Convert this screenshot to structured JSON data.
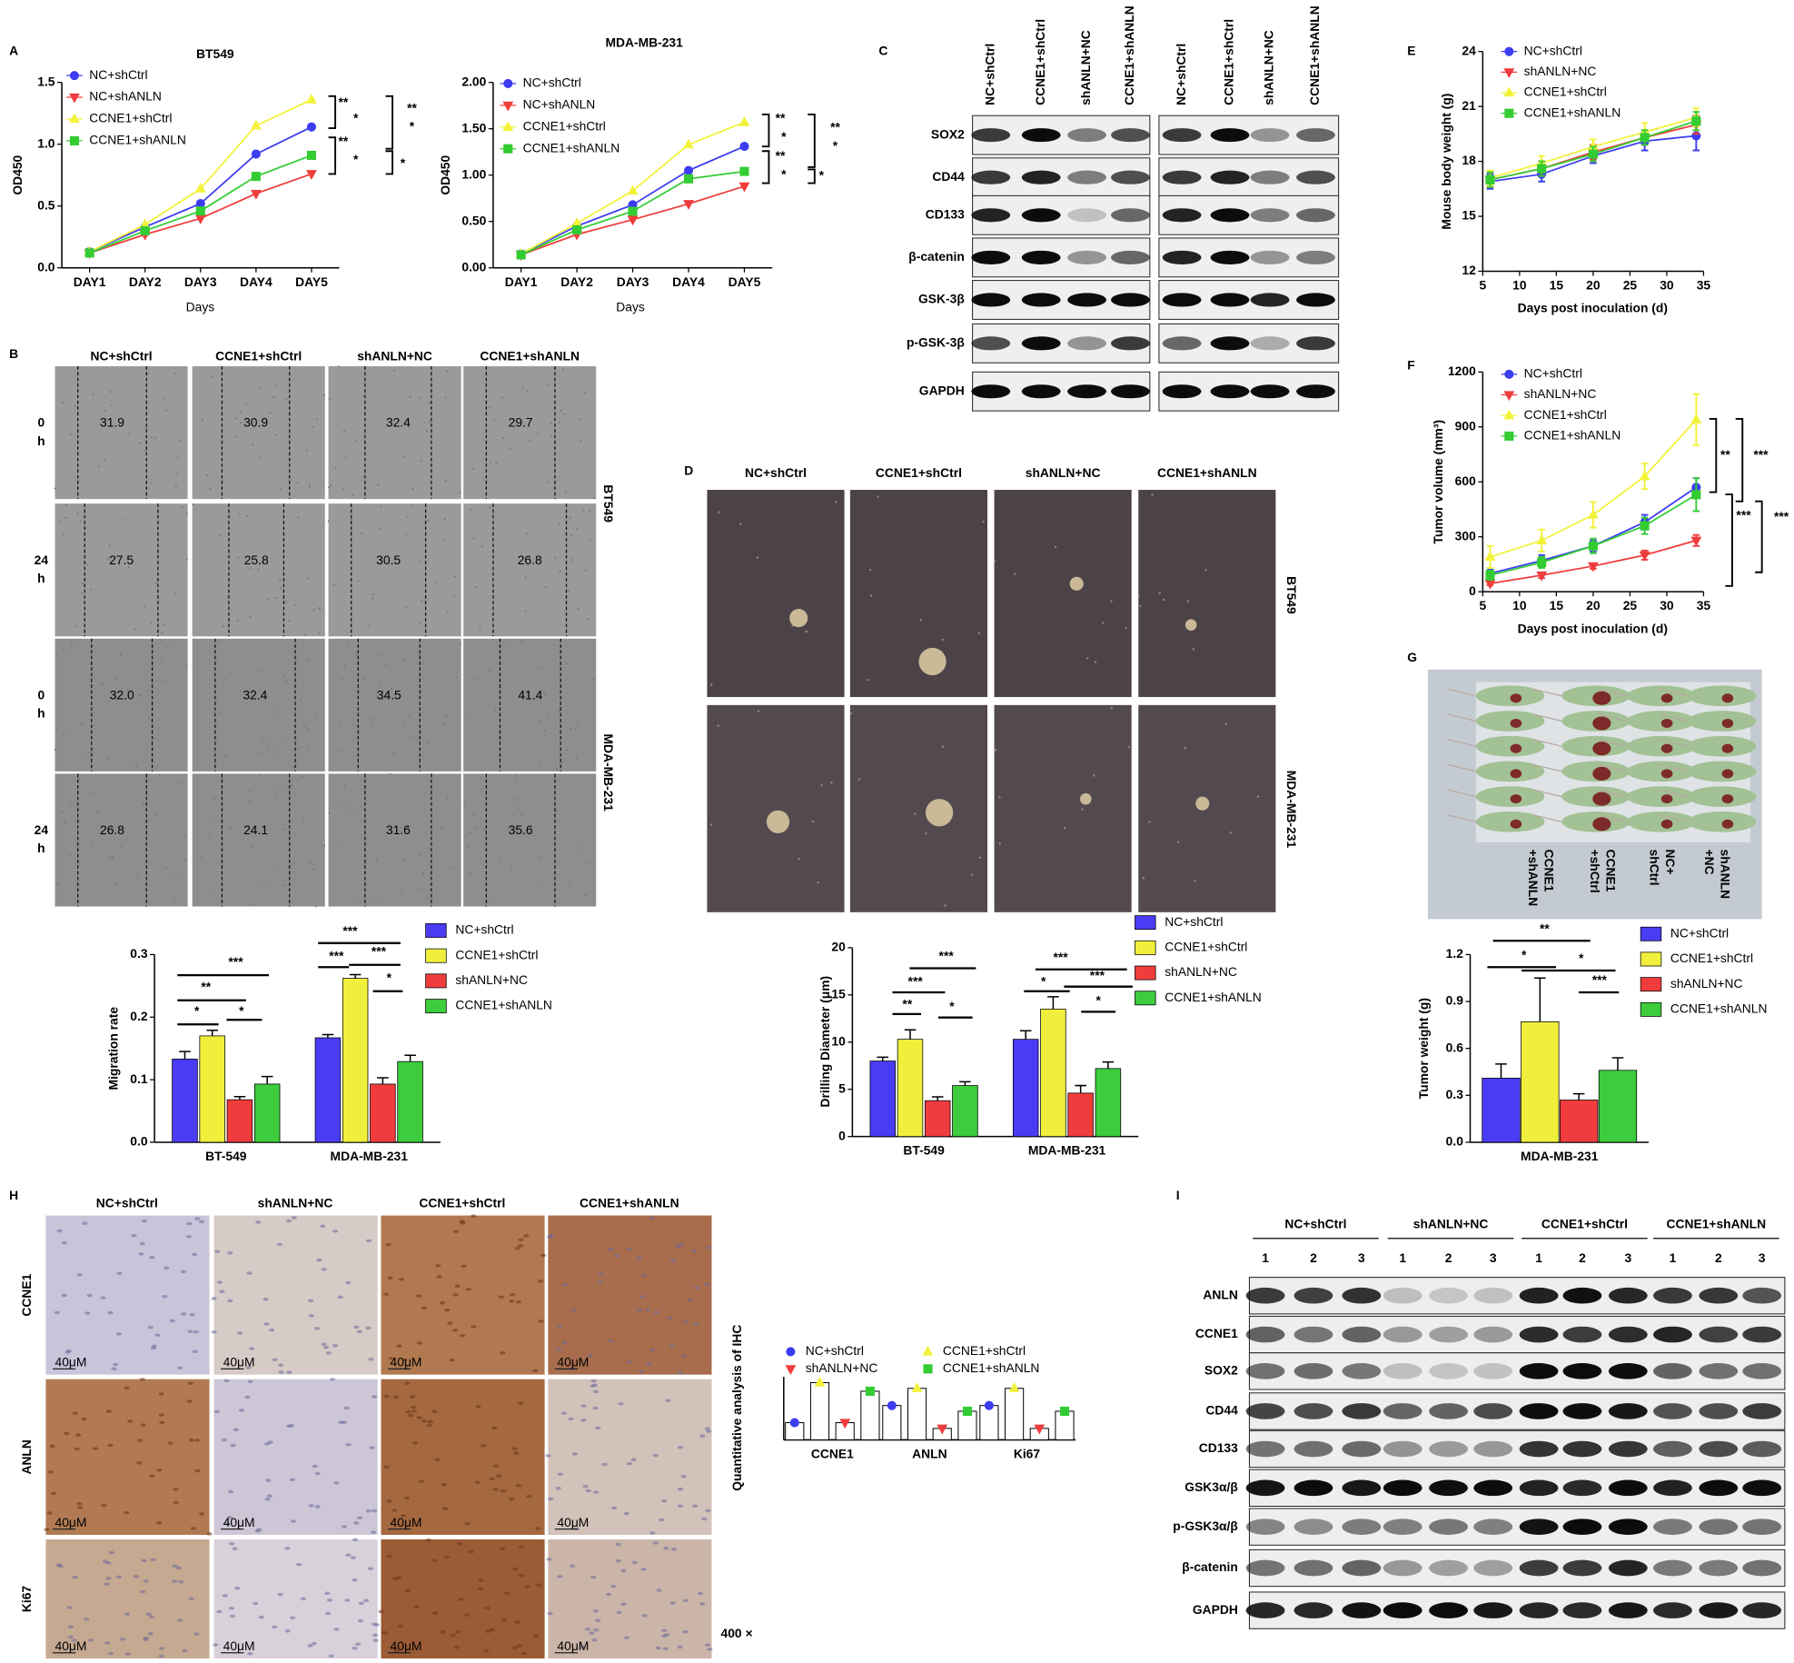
{
  "panel_letters": [
    "A",
    "B",
    "C",
    "D",
    "E",
    "F",
    "G",
    "H",
    "I"
  ],
  "chart_data": [
    {
      "type": "line",
      "title": "BT549",
      "x_label": "Days",
      "y_label": "OD450",
      "categories": [
        "DAY1",
        "DAY2",
        "DAY3",
        "DAY4",
        "DAY5"
      ],
      "series": [
        {
          "name": "NC+shCtrl",
          "color": "#3c3cf0",
          "marker": "circle",
          "values": [
            0.13,
            0.33,
            0.52,
            0.92,
            1.14
          ]
        },
        {
          "name": "NC+shANLN",
          "color": "#f03c3c",
          "marker": "triangle-down",
          "values": [
            0.12,
            0.27,
            0.4,
            0.6,
            0.76
          ]
        },
        {
          "name": "CCNE1+shCtrl",
          "color": "#f2f23a",
          "marker": "triangle-up",
          "values": [
            0.13,
            0.35,
            0.64,
            1.15,
            1.36
          ]
        },
        {
          "name": "CCNE1+shANLN",
          "color": "#33cc33",
          "marker": "square",
          "values": [
            0.12,
            0.3,
            0.46,
            0.74,
            0.91
          ]
        }
      ],
      "ylim": [
        0,
        1.5
      ],
      "yticks": [
        {
          "value": 0,
          "label": "0.0"
        },
        0.5,
        {
          "value": 1,
          "label": "1.0"
        },
        1.5
      ],
      "annotations": [
        "**",
        "*",
        "**",
        "*",
        "**",
        "*",
        "*"
      ]
    },
    {
      "type": "line",
      "title": "MDA-MB-231",
      "x_label": "Days",
      "y_label": "OD450",
      "categories": [
        "DAY1",
        "DAY2",
        "DAY3",
        "DAY4",
        "DAY5"
      ],
      "series": [
        {
          "name": "NC+shCtrl",
          "color": "#3c3cf0",
          "marker": "circle",
          "values": [
            0.15,
            0.45,
            0.68,
            1.05,
            1.31
          ]
        },
        {
          "name": "NC+shANLN",
          "color": "#f03c3c",
          "marker": "triangle-down",
          "values": [
            0.14,
            0.36,
            0.52,
            0.69,
            0.88
          ]
        },
        {
          "name": "CCNE1+shCtrl",
          "color": "#f2f23a",
          "marker": "triangle-up",
          "values": [
            0.15,
            0.48,
            0.83,
            1.33,
            1.57
          ]
        },
        {
          "name": "CCNE1+shANLN",
          "color": "#33cc33",
          "marker": "square",
          "values": [
            0.14,
            0.41,
            0.61,
            0.96,
            1.04
          ]
        }
      ],
      "ylim": [
        0,
        2
      ],
      "yticks": [
        {
          "value": 0,
          "label": "0.00"
        },
        {
          "value": 0.5,
          "label": "0.50"
        },
        {
          "value": 1,
          "label": "1.00"
        },
        {
          "value": 1.5,
          "label": "1.50"
        },
        {
          "value": 2,
          "label": "2.00"
        }
      ],
      "annotations": [
        "**",
        "*",
        "**",
        "*",
        "**",
        "*",
        "*"
      ]
    },
    {
      "type": "line",
      "x_label": "Days post inoculation (d)",
      "y_label": "Mouse body weight (g)",
      "x": [
        6,
        13,
        20,
        27,
        34
      ],
      "xlim": [
        5,
        35
      ],
      "xticks": [
        5,
        10,
        15,
        20,
        25,
        30,
        35
      ],
      "series": [
        {
          "name": "NC+shCtrl",
          "color": "#3c3cf0",
          "marker": "circle",
          "values": [
            16.9,
            17.3,
            18.3,
            19.1,
            19.4
          ],
          "errors": [
            0.4,
            0.4,
            0.4,
            0.5,
            0.8
          ]
        },
        {
          "name": "shANLN+NC",
          "color": "#f03c3c",
          "marker": "triangle-down",
          "values": [
            17.0,
            17.6,
            18.5,
            19.3,
            20.0
          ],
          "errors": [
            0.4,
            0.4,
            0.4,
            0.4,
            0.5
          ]
        },
        {
          "name": "CCNE1+shCtrl",
          "color": "#f2f23a",
          "marker": "triangle-up",
          "values": [
            17.1,
            17.9,
            18.8,
            19.6,
            20.4
          ],
          "errors": [
            0.4,
            0.4,
            0.4,
            0.5,
            0.5
          ]
        },
        {
          "name": "CCNE1+shANLN",
          "color": "#33cc33",
          "marker": "square",
          "values": [
            17.0,
            17.6,
            18.4,
            19.3,
            20.2
          ],
          "errors": [
            0.4,
            0.4,
            0.4,
            0.4,
            0.5
          ]
        }
      ],
      "ylim": [
        12,
        24
      ],
      "yticks": [
        12,
        15,
        18,
        21,
        24
      ]
    },
    {
      "type": "line",
      "x_label": "Days post inoculation (d)",
      "y_label": "Tumor volume (mm³)",
      "x": [
        6,
        13,
        20,
        27,
        34
      ],
      "xlim": [
        5,
        35
      ],
      "xticks": [
        5,
        10,
        15,
        20,
        25,
        30,
        35
      ],
      "series": [
        {
          "name": "NC+shCtrl",
          "color": "#3c3cf0",
          "marker": "circle",
          "values": [
            100,
            170,
            250,
            380,
            570
          ],
          "errors": [
            20,
            30,
            30,
            40,
            50
          ]
        },
        {
          "name": "shANLN+NC",
          "color": "#f03c3c",
          "marker": "triangle-down",
          "values": [
            45,
            90,
            140,
            200,
            280
          ],
          "errors": [
            10,
            15,
            15,
            25,
            30
          ]
        },
        {
          "name": "CCNE1+shCtrl",
          "color": "#f2f23a",
          "marker": "triangle-up",
          "values": [
            190,
            280,
            420,
            630,
            940
          ],
          "errors": [
            60,
            60,
            70,
            70,
            140
          ]
        },
        {
          "name": "CCNE1+shANLN",
          "color": "#33cc33",
          "marker": "square",
          "values": [
            90,
            160,
            250,
            360,
            530
          ],
          "errors": [
            25,
            30,
            40,
            45,
            90
          ]
        }
      ],
      "ylim": [
        0,
        1200
      ],
      "yticks": [
        0,
        300,
        600,
        900,
        1200
      ],
      "annotations": [
        "**",
        "***",
        "***",
        "***"
      ]
    },
    {
      "type": "bar",
      "y_label": "Migration rate",
      "categories": [
        "BT-549",
        "MDA-MB-231"
      ],
      "series": [
        {
          "name": "NC+shCtrl",
          "color": "#4a3cf5",
          "values": [
            0.133,
            0.167
          ],
          "errors": [
            0.012,
            0.005
          ]
        },
        {
          "name": "CCNE1+shCtrl",
          "color": "#f0f03c",
          "values": [
            0.17,
            0.262
          ],
          "errors": [
            0.009,
            0.006
          ]
        },
        {
          "name": "shANLN+NC",
          "color": "#f03c3c",
          "values": [
            0.068,
            0.093
          ],
          "errors": [
            0.005,
            0.01
          ]
        },
        {
          "name": "CCNE1+shANLN",
          "color": "#3ccc3c",
          "values": [
            0.093,
            0.129
          ],
          "errors": [
            0.012,
            0.01
          ]
        }
      ],
      "ylim": [
        0,
        0.3
      ],
      "yticks": [
        {
          "value": 0,
          "label": "0.0"
        },
        0.1,
        0.2,
        0.3
      ],
      "annotations": [
        "***",
        "**",
        "*",
        "*",
        "***",
        "***",
        "***",
        "*"
      ]
    },
    {
      "type": "bar",
      "y_label": "Drilling Diameter (μm)",
      "categories": [
        "BT-549",
        "MDA-MB-231"
      ],
      "series": [
        {
          "name": "NC+shCtrl",
          "color": "#4a3cf5",
          "values": [
            8.0,
            10.3
          ],
          "errors": [
            0.4,
            0.9
          ]
        },
        {
          "name": "CCNE1+shCtrl",
          "color": "#f0f03c",
          "values": [
            10.3,
            13.5
          ],
          "errors": [
            1.0,
            1.3
          ]
        },
        {
          "name": "shANLN+NC",
          "color": "#f03c3c",
          "values": [
            3.8,
            4.6
          ],
          "errors": [
            0.4,
            0.8
          ]
        },
        {
          "name": "CCNE1+shANLN",
          "color": "#3ccc3c",
          "values": [
            5.4,
            7.2
          ],
          "errors": [
            0.4,
            0.7
          ]
        }
      ],
      "ylim": [
        0,
        20
      ],
      "yticks": [
        0,
        5,
        10,
        15,
        20
      ],
      "annotations": [
        "***",
        "***",
        "**",
        "*",
        "***",
        "*",
        "***",
        "*"
      ]
    },
    {
      "type": "bar",
      "y_label": "Tumor weight (g)",
      "categories": [
        "MDA-MB-231"
      ],
      "series": [
        {
          "name": "NC+shCtrl",
          "color": "#4a3cf5",
          "values": [
            0.41
          ],
          "errors": [
            0.09
          ]
        },
        {
          "name": "CCNE1+shCtrl",
          "color": "#f0f03c",
          "values": [
            0.77
          ],
          "errors": [
            0.28
          ]
        },
        {
          "name": "shANLN+NC",
          "color": "#f03c3c",
          "values": [
            0.27
          ],
          "errors": [
            0.04
          ]
        },
        {
          "name": "CCNE1+shANLN",
          "color": "#3ccc3c",
          "values": [
            0.46
          ],
          "errors": [
            0.08
          ]
        }
      ],
      "ylim": [
        0,
        1.2
      ],
      "yticks": [
        {
          "value": 0,
          "label": "0.0"
        },
        0.3,
        0.6,
        0.9,
        1.2
      ],
      "annotations": [
        "**",
        "*",
        "*",
        "***"
      ]
    },
    {
      "type": "dot_bar",
      "y_label": "Quantitative analysis of IHC",
      "categories": [
        "CCNE1",
        "ANLN",
        "Ki67"
      ],
      "series": [
        {
          "name": "NC+shCtrl",
          "color": "#3c3cf0",
          "marker": "circle",
          "values": [
            3,
            6,
            6
          ]
        },
        {
          "name": "CCNE1+shCtrl",
          "color": "#f2f23a",
          "marker": "triangle-up",
          "values": [
            10,
            9,
            9
          ]
        },
        {
          "name": "shANLN+NC",
          "color": "#f03c3c",
          "marker": "triangle-down",
          "values": [
            3,
            2,
            2
          ]
        },
        {
          "name": "CCNE1+shANLN",
          "color": "#33cc33",
          "marker": "square",
          "values": [
            8.5,
            5,
            5
          ]
        }
      ],
      "ylim": [
        0,
        11
      ]
    }
  ],
  "wound_assay": {
    "columns": [
      "NC+shCtrl",
      "CCNE1+shCtrl",
      "shANLN+NC",
      "CCNE1+shANLN"
    ],
    "rows": [
      [
        "0",
        "h"
      ],
      [
        "24",
        "h"
      ],
      [
        "0",
        "h"
      ],
      [
        "24",
        "h"
      ]
    ],
    "cell_lines": [
      "BT549",
      "MDA-MB-231"
    ],
    "widths": [
      [
        "31.9",
        "30.9",
        "32.4",
        "29.7"
      ],
      [
        "27.5",
        "25.8",
        "30.5",
        "26.8"
      ],
      [
        "32.0",
        "32.4",
        "34.5",
        "41.4"
      ],
      [
        "26.8",
        "24.1",
        "31.6",
        "35.6"
      ]
    ]
  },
  "western_c": {
    "lanes": [
      "NC+shCtrl",
      "CCNE1+shCtrl",
      "shANLN+NC",
      "CCNE1+shANLN"
    ],
    "proteins": [
      "SOX2",
      "CD44",
      "CD133",
      "β-catenin",
      "GSK-3β",
      "p-GSK-3β",
      "GAPDH"
    ]
  },
  "sphere_d": {
    "columns": [
      "NC+shCtrl",
      "CCNE1+shCtrl",
      "shANLN+NC",
      "CCNE1+shANLN"
    ],
    "cell_lines": [
      "BT549",
      "MDA-MB-231"
    ]
  },
  "mice_g": {
    "labels": [
      [
        "CCNE1",
        "+shANLN"
      ],
      [
        "CCNE1",
        "+shCtrl"
      ],
      [
        "NC+",
        "shCtrl"
      ],
      [
        "shANLN",
        "+NC"
      ]
    ]
  },
  "ihc_h": {
    "columns": [
      "NC+shCtrl",
      "shANLN+NC",
      "CCNE1+shCtrl",
      "CCNE1+shANLN"
    ],
    "rows": [
      "CCNE1",
      "ANLN",
      "Ki67"
    ],
    "scale_bar": "40μM",
    "magnification": "400 ×"
  },
  "western_i": {
    "groups": [
      "NC+shCtrl",
      "shANLN+NC",
      "CCNE1+shCtrl",
      "CCNE1+shANLN"
    ],
    "replicates": [
      "1",
      "2",
      "3"
    ],
    "proteins": [
      "ANLN",
      "CCNE1",
      "SOX2",
      "CD44",
      "CD133",
      "GSK3α/β",
      "p-GSK3α/β",
      "β-catenin",
      "GAPDH"
    ]
  }
}
